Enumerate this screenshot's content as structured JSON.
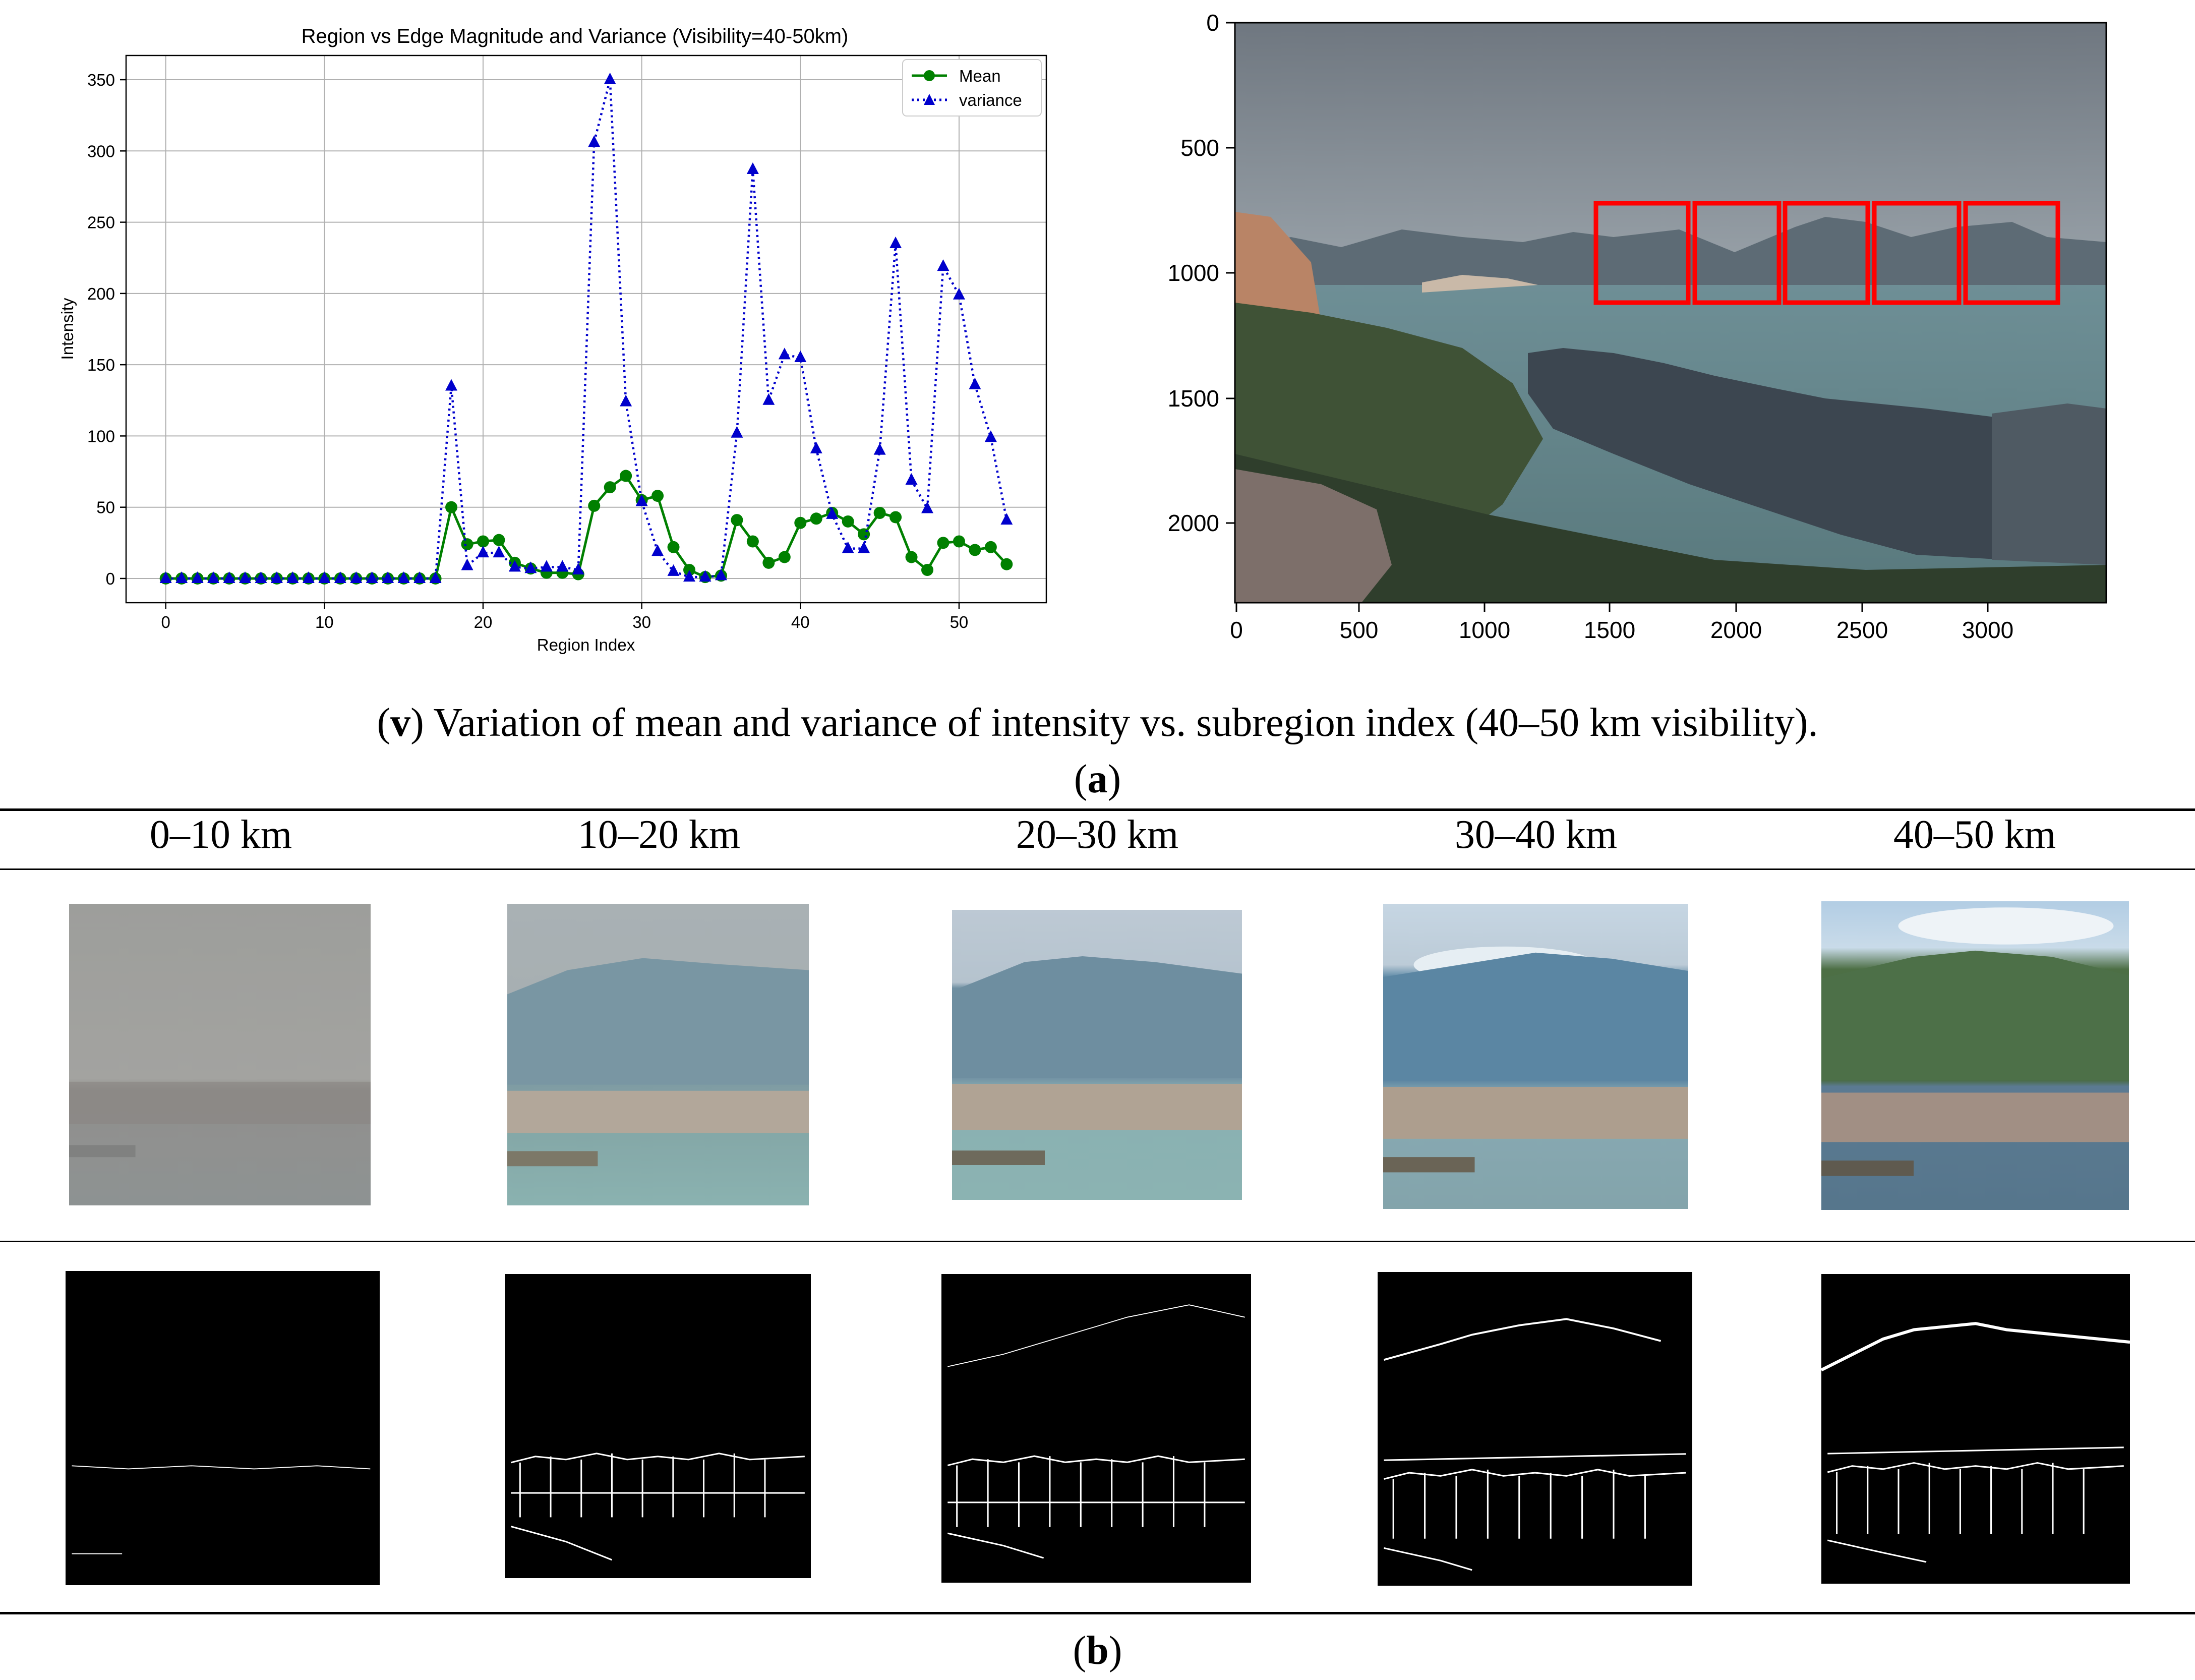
{
  "chart_data": {
    "type": "line",
    "title": "Region vs Edge Magnitude and Variance (Visibility=40-50km)",
    "xlabel": "Region Index",
    "ylabel": "Intensity",
    "xlim": [
      -2.5,
      55.5
    ],
    "ylim": [
      -17,
      367
    ],
    "xticks": [
      0,
      10,
      20,
      30,
      40,
      50
    ],
    "yticks": [
      0,
      50,
      100,
      150,
      200,
      250,
      300,
      350
    ],
    "grid": true,
    "legend_position": "top-right",
    "x": [
      0,
      1,
      2,
      3,
      4,
      5,
      6,
      7,
      8,
      9,
      10,
      11,
      12,
      13,
      14,
      15,
      16,
      17,
      18,
      19,
      20,
      21,
      22,
      23,
      24,
      25,
      26,
      27,
      28,
      29,
      30,
      31,
      32,
      33,
      34,
      35,
      36,
      37,
      38,
      39,
      40,
      41,
      42,
      43,
      44,
      45,
      46,
      47,
      48,
      49,
      50,
      51,
      52,
      53
    ],
    "series": [
      {
        "name": "Mean",
        "color": "#008000",
        "marker": "circle",
        "linestyle": "solid",
        "values": [
          0,
          0,
          0,
          0,
          0,
          0,
          0,
          0,
          0,
          0,
          0,
          0,
          0,
          0,
          0,
          0,
          0,
          0,
          50,
          24,
          26,
          27,
          11,
          7,
          4,
          4,
          3,
          51,
          64,
          72,
          55,
          58,
          22,
          6,
          1,
          2,
          41,
          26,
          11,
          15,
          39,
          42,
          46,
          40,
          31,
          46,
          43,
          15,
          6,
          25,
          26,
          20,
          22,
          10
        ]
      },
      {
        "name": "variance",
        "color": "#0000cc",
        "marker": "triangle",
        "linestyle": "dotted",
        "values": [
          0,
          0,
          0,
          0,
          0,
          0,
          0,
          0,
          0,
          0,
          0,
          0,
          0,
          0,
          0,
          0,
          0,
          0,
          135,
          9,
          18,
          18,
          8,
          7,
          8,
          8,
          6,
          306,
          350,
          124,
          54,
          19,
          5,
          1,
          1,
          2,
          102,
          287,
          125,
          157,
          155,
          91,
          45,
          21,
          21,
          90,
          235,
          69,
          49,
          219,
          199,
          136,
          99,
          41
        ]
      }
    ]
  },
  "photo_axes": {
    "xticks": [
      "0",
      "500",
      "1000",
      "1500",
      "2000",
      "2500",
      "3000"
    ],
    "yticks": [
      "0",
      "500",
      "1000",
      "1500",
      "2000"
    ],
    "box_color": "#ff0000"
  },
  "caption_v": {
    "label": "v",
    "text": "Variation of mean and variance of intensity vs. subregion index (40–50 km visibility)."
  },
  "caption_a": "a",
  "caption_b": "b",
  "columns": [
    "0–10 km",
    "10–20 km",
    "20–30 km",
    "30–40 km",
    "40–50 km"
  ]
}
